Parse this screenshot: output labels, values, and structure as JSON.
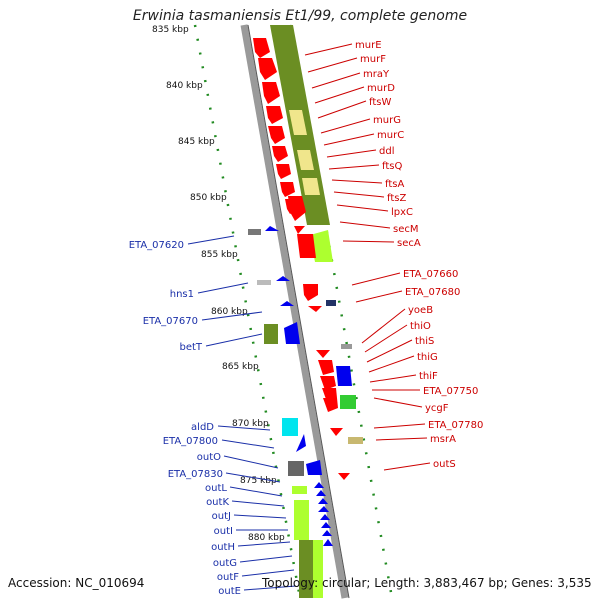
{
  "title": "Erwinia tasmaniensis Et1/99, complete genome",
  "accession": "Accession: NC_010694",
  "topology": "Topology: circular; Length: 3,883,467 bp; Genes: 3,535",
  "kbp_labels": [
    "835 kbp",
    "840 kbp",
    "845 kbp",
    "850 kbp",
    "855 kbp",
    "860 kbp",
    "865 kbp",
    "870 kbp",
    "875 kbp",
    "880 kbp"
  ],
  "right_genes": [
    "murE",
    "murF",
    "mraY",
    "murD",
    "ftsW",
    "murG",
    "murC",
    "ddl",
    "ftsQ",
    "ftsA",
    "ftsZ",
    "lpxC",
    "secM",
    "secA",
    "ETA_07660",
    "ETA_07680",
    "yoeB",
    "thiO",
    "thiS",
    "thiG",
    "thiF",
    "ETA_07750",
    "ycgF",
    "ETA_07780",
    "msrA",
    "outS"
  ],
  "left_genes": [
    "ETA_07620",
    "hns1",
    "ETA_07670",
    "betT",
    "aldD",
    "ETA_07800",
    "outO",
    "ETA_07830",
    "outL",
    "outK",
    "outJ",
    "outI",
    "outH",
    "outG",
    "outF",
    "outE"
  ],
  "colors": {
    "red_genes": "#ff0000",
    "blue_genes": "#0000ee",
    "olive_band": "#6b8e23",
    "lime_band": "#adff2f",
    "pale_yellow": "#f0e68c",
    "cyan_gene": "#00e5ee",
    "grey_gene": "#777777",
    "tick_green": "#228b22",
    "backbone": "#9a9a9a",
    "label_red": "#cc0000",
    "label_blue": "#1a2fa8"
  }
}
